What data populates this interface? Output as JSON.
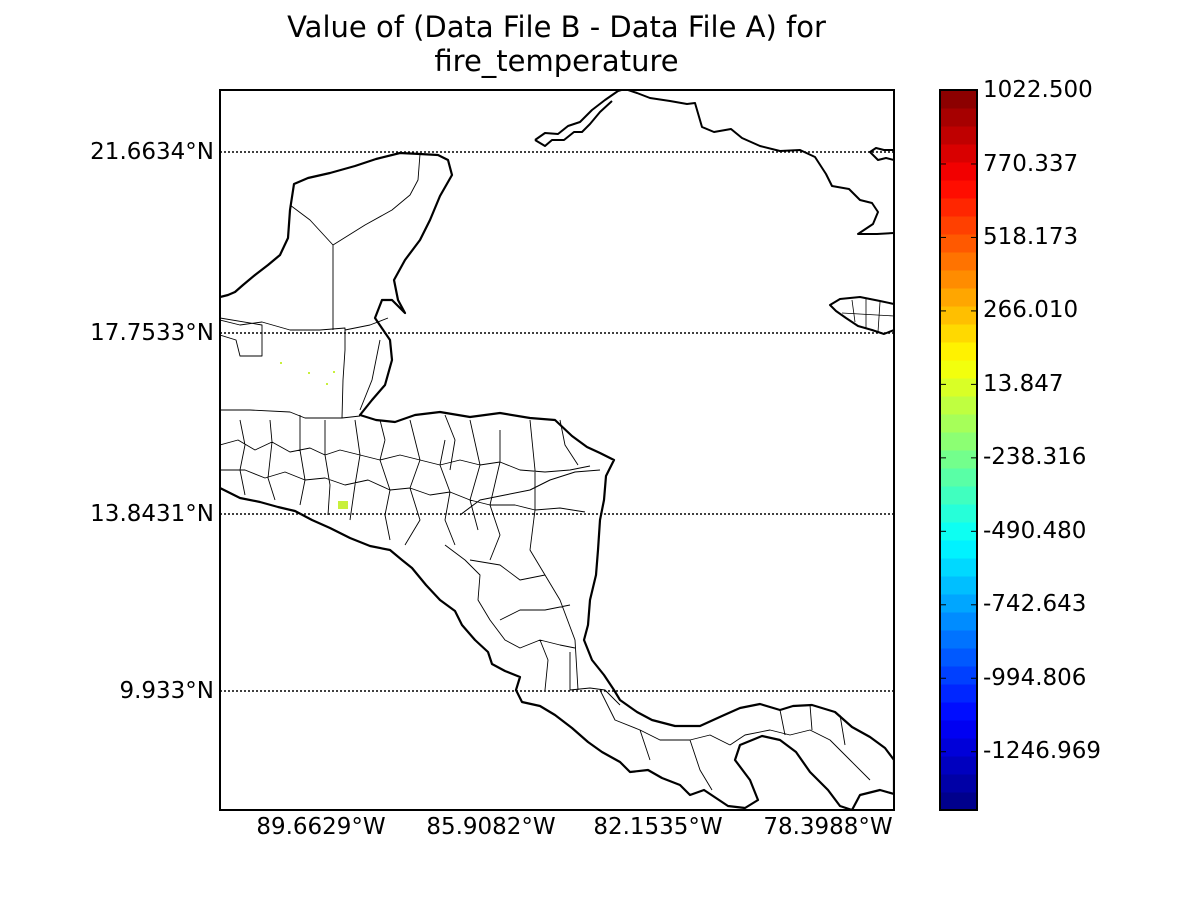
{
  "title_line1": "Value of (Data File B - Data File A) for",
  "title_line2": "fire_temperature",
  "map": {
    "lat_labels": [
      "21.6634°N",
      "17.7533°N",
      "13.8431°N",
      "9.933°N"
    ],
    "lon_labels": [
      "89.6629°W",
      "85.9082°W",
      "82.1535°W",
      "78.3988°W"
    ],
    "graticule_style": "dotted",
    "data_color": "#c8f03c"
  },
  "colorbar": {
    "labels": [
      "1022.500",
      "770.337",
      "518.173",
      "266.010",
      "13.847",
      "-238.316",
      "-490.480",
      "-742.643",
      "-994.806",
      "-1246.969"
    ],
    "colormap": "jet",
    "num_levels": 40,
    "min": -1499.132,
    "max": 1022.5
  }
}
